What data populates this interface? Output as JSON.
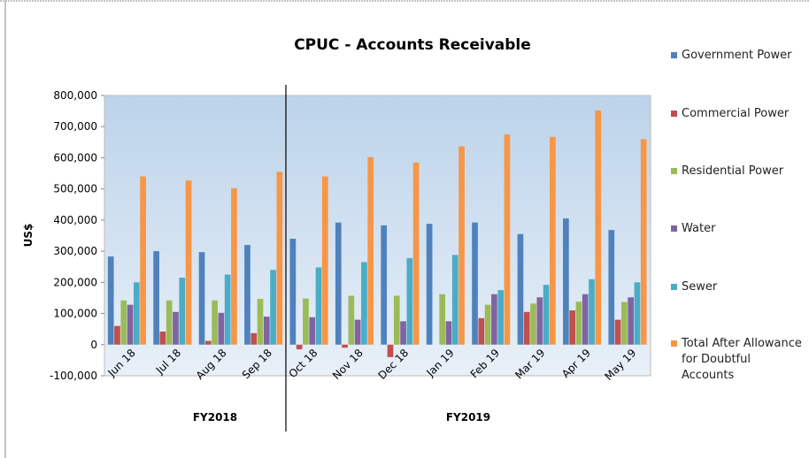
{
  "chart_data": {
    "type": "bar",
    "title": "CPUC - Accounts Receivable",
    "y_label": "US$",
    "annotations": [
      "FY2018",
      "FY2019"
    ],
    "categories": [
      "Jun 18",
      "Jul 18",
      "Aug 18",
      "Sep 18",
      "Oct 18",
      "Nov 18",
      "Dec 18",
      "Jan 19",
      "Feb 19",
      "Mar 19",
      "Apr 19",
      "May 19"
    ],
    "series": [
      {
        "name": "Government Power",
        "color": "#4f81bd",
        "values": [
          283000,
          300000,
          297000,
          320000,
          340000,
          392000,
          383000,
          388000,
          392000,
          355000,
          405000,
          368000
        ]
      },
      {
        "name": "Commercial Power",
        "color": "#c0504d",
        "values": [
          60000,
          42000,
          12000,
          37000,
          -15000,
          -10000,
          -40000,
          0,
          85000,
          105000,
          110000,
          80000
        ]
      },
      {
        "name": "Residential Power",
        "color": "#9bbb59",
        "values": [
          142000,
          142000,
          142000,
          147000,
          148000,
          157000,
          157000,
          162000,
          128000,
          132000,
          138000,
          137000
        ]
      },
      {
        "name": "Water",
        "color": "#8064a2",
        "values": [
          128000,
          105000,
          102000,
          90000,
          88000,
          80000,
          75000,
          75000,
          162000,
          152000,
          162000,
          152000
        ]
      },
      {
        "name": "Sewer",
        "color": "#4bacc6",
        "values": [
          200000,
          215000,
          225000,
          240000,
          248000,
          265000,
          278000,
          288000,
          175000,
          192000,
          210000,
          200000
        ]
      },
      {
        "name": "Total After Allowance for Doubtful Accounts",
        "color": "#f79646",
        "values": [
          540000,
          527000,
          502000,
          555000,
          540000,
          602000,
          585000,
          637000,
          675000,
          667000,
          752000,
          660000
        ]
      }
    ],
    "ylim": [
      -100000,
      800000
    ],
    "yticks": [
      {
        "value": -100000,
        "label": "-100,000"
      },
      0,
      {
        "value": 100000,
        "label": "100,000"
      },
      {
        "value": 200000,
        "label": "200,000"
      },
      {
        "value": 300000,
        "label": "300,000"
      },
      {
        "value": 400000,
        "label": "400,000"
      },
      {
        "value": 500000,
        "label": "500,000"
      },
      {
        "value": 600000,
        "label": "600,000"
      },
      {
        "value": 700000,
        "label": "700,000"
      },
      {
        "value": 800000,
        "label": "800,000"
      }
    ],
    "legend": "right"
  }
}
